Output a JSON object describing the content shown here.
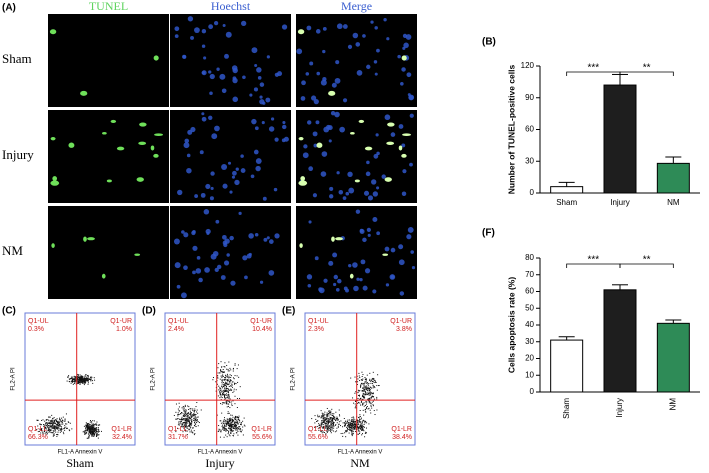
{
  "panel_a": {
    "label": "(A)",
    "columns": [
      "TUNEL",
      "Hoechst",
      "Merge"
    ],
    "rows": [
      "Sham",
      "Injury",
      "NM"
    ]
  },
  "chart_data": [
    {
      "type": "bar",
      "panel": "(B)",
      "ylabel": "Number of TUNEL-positive cells",
      "categories": [
        "Sham",
        "Injury",
        "NM"
      ],
      "values": [
        6,
        102,
        28
      ],
      "errors": [
        4,
        10,
        6
      ],
      "colors": [
        "#ffffff",
        "#1e1e1e",
        "#2e8b57"
      ],
      "ylim": [
        0,
        120
      ],
      "yticks": [
        0,
        30,
        60,
        90,
        120
      ],
      "annotations": [
        "***",
        "**"
      ]
    },
    {
      "type": "bar",
      "panel": "(F)",
      "ylabel": "Cells apoptosis rate (%)",
      "categories": [
        "Sham",
        "Injury",
        "NM"
      ],
      "values": [
        31,
        61,
        41
      ],
      "errors": [
        2,
        3,
        2
      ],
      "colors": [
        "#ffffff",
        "#1e1e1e",
        "#2e8b57"
      ],
      "ylim": [
        0,
        80
      ],
      "yticks": [
        0,
        10,
        20,
        30,
        40,
        50,
        60,
        70,
        80
      ],
      "annotations": [
        "***",
        "**"
      ]
    }
  ],
  "flow": [
    {
      "panel": "(C)",
      "name": "Sham",
      "xlabel": "FL1-A Annexin V",
      "ylabel": "FL2-A PI",
      "quadrants": [
        {
          "label": "Q1-UL",
          "value": 0.3,
          "value_label": "0.3%"
        },
        {
          "label": "Q1-UR",
          "value": 1.0,
          "value_label": "1.0%"
        },
        {
          "label": "Q1-LL",
          "value": 66.3,
          "value_label": "66.3%"
        },
        {
          "label": "Q1-LR",
          "value": 32.4,
          "value_label": "32.4%"
        }
      ]
    },
    {
      "panel": "(D)",
      "name": "Injury",
      "xlabel": "FL1-A Annexin V",
      "ylabel": "FL2-A PI",
      "quadrants": [
        {
          "label": "Q1-UL",
          "value": 2.4,
          "value_label": "2.4%"
        },
        {
          "label": "Q1-UR",
          "value": 10.4,
          "value_label": "10.4%"
        },
        {
          "label": "Q1-LL",
          "value": 31.7,
          "value_label": "31.7%"
        },
        {
          "label": "Q1-LR",
          "value": 55.6,
          "value_label": "55.6%"
        }
      ]
    },
    {
      "panel": "(E)",
      "name": "NM",
      "xlabel": "FL1-A Annexin V",
      "ylabel": "FL2-A PI",
      "quadrants": [
        {
          "label": "Q1-UL",
          "value": 2.3,
          "value_label": "2.3%"
        },
        {
          "label": "Q1-UR",
          "value": 3.8,
          "value_label": "3.8%"
        },
        {
          "label": "Q1-LL",
          "value": 55.6,
          "value_label": "55.6%"
        },
        {
          "label": "Q1-LR",
          "value": 38.4,
          "value_label": "38.4%"
        }
      ]
    }
  ]
}
